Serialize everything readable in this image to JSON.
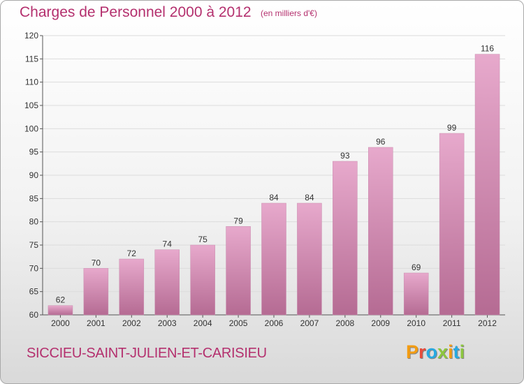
{
  "header": {
    "title": "Charges de Personnel 2000 à 2012",
    "subtitle": "(en milliers d'€)"
  },
  "footer": {
    "place": "SICCIEU-SAINT-JULIEN-ET-CARISIEU",
    "logo": "Proxiti",
    "logo_colors": [
      "#f39c12",
      "#e74c3c",
      "#27a9e1",
      "#8dc63f",
      "#f39c12",
      "#27a9e1",
      "#8dc63f"
    ]
  },
  "colors": {
    "bar_top": "#e7a9cc",
    "bar_bottom": "#b56b93",
    "text_accent": "#b4306e"
  },
  "chart_data": {
    "type": "bar",
    "title": "Charges de Personnel 2000 à 2012",
    "subtitle": "(en milliers d'€)",
    "xlabel": "",
    "ylabel": "",
    "categories": [
      "2000",
      "2001",
      "2002",
      "2003",
      "2004",
      "2005",
      "2006",
      "2007",
      "2008",
      "2009",
      "2010",
      "2011",
      "2012"
    ],
    "values": [
      62,
      70,
      72,
      74,
      75,
      79,
      84,
      84,
      93,
      96,
      69,
      99,
      116
    ],
    "ylim": [
      60,
      120
    ],
    "yticks": [
      60,
      65,
      70,
      75,
      80,
      85,
      90,
      95,
      100,
      105,
      110,
      115,
      120
    ],
    "grid": true,
    "legend": "none"
  }
}
